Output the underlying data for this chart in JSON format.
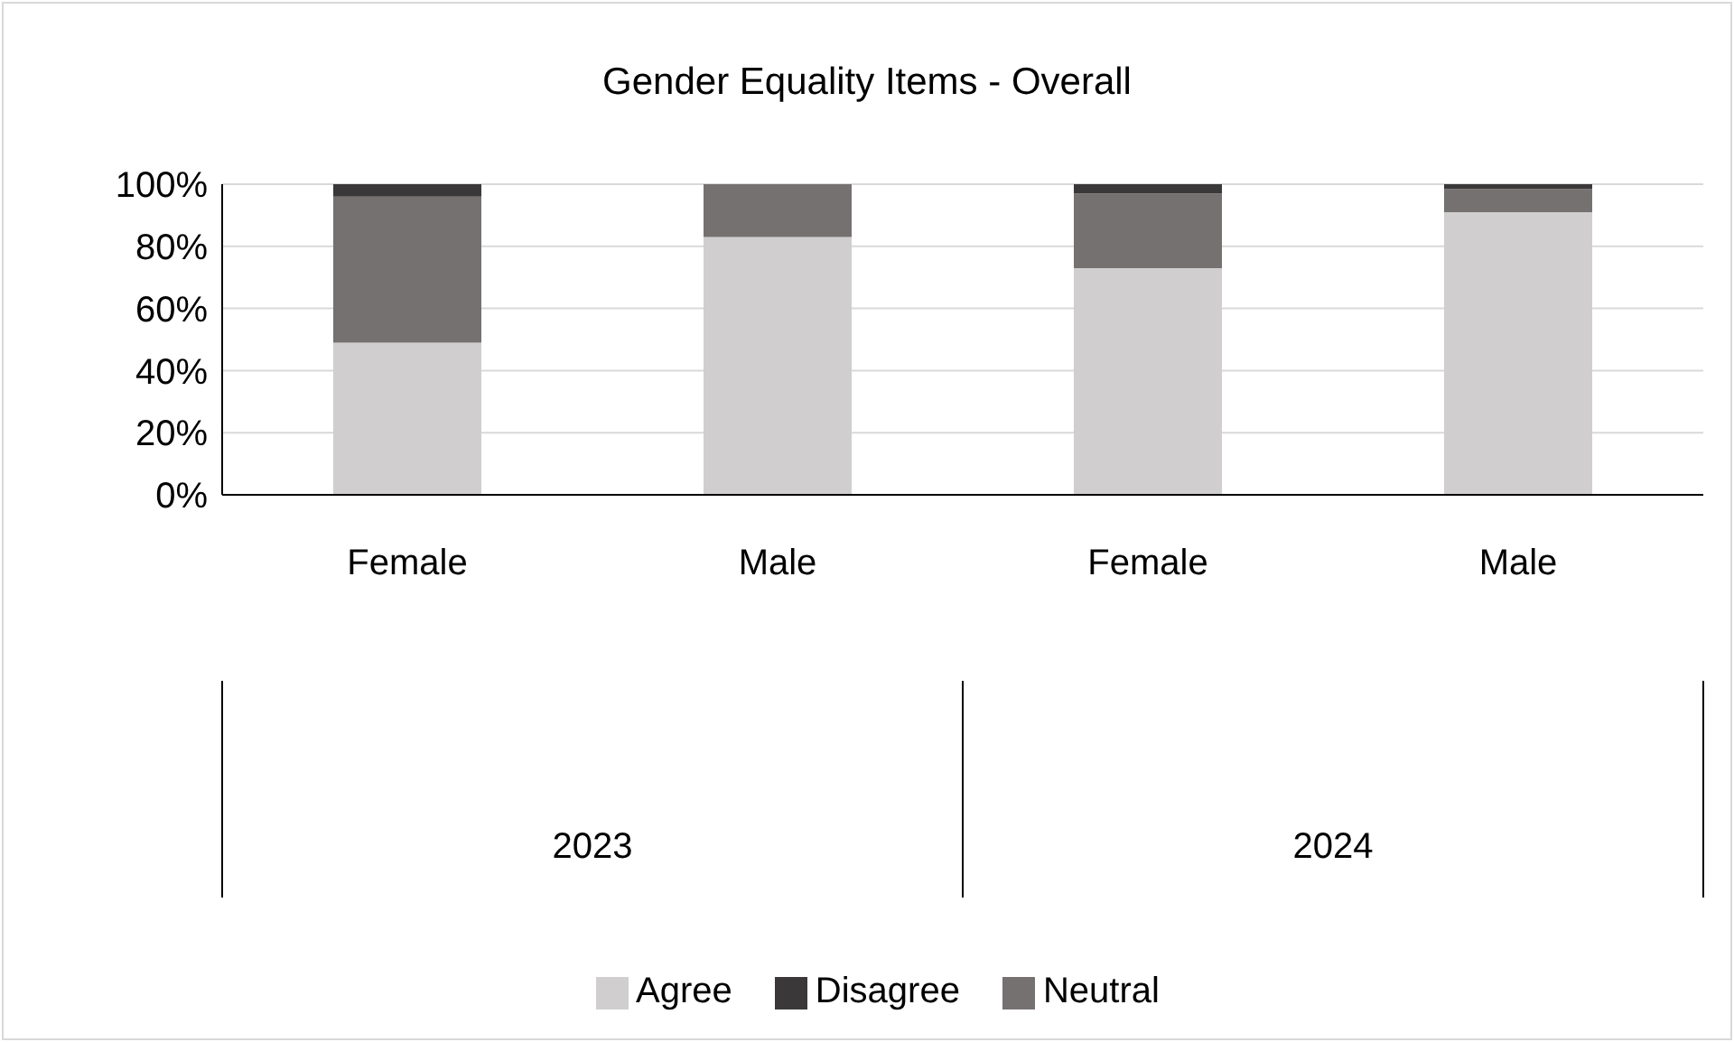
{
  "chart_data": {
    "type": "bar",
    "title": "Gender Equality Items - Overall",
    "categories": [
      "Female",
      "Male",
      "Female",
      "Male"
    ],
    "annotations": [
      "2023",
      "2024"
    ],
    "stacked": true,
    "series": [
      {
        "name": "Agree",
        "color": "#d0cece",
        "values": [
          49,
          83,
          73,
          91
        ]
      },
      {
        "name": "Neutral",
        "color": "#757171",
        "values": [
          47,
          17,
          24,
          7.5
        ]
      },
      {
        "name": "Disagree",
        "color": "#3a3838",
        "values": [
          4,
          0,
          3,
          1.5
        ]
      }
    ],
    "ylim": [
      0,
      100
    ],
    "yticks": [
      {
        "value": 0,
        "label": "0%"
      },
      {
        "value": 20,
        "label": "20%"
      },
      {
        "value": 40,
        "label": "40%"
      },
      {
        "value": 60,
        "label": "60%"
      },
      {
        "value": 80,
        "label": "80%"
      },
      {
        "value": 100,
        "label": "100%"
      }
    ],
    "grid": "y",
    "legend": "bottom"
  }
}
